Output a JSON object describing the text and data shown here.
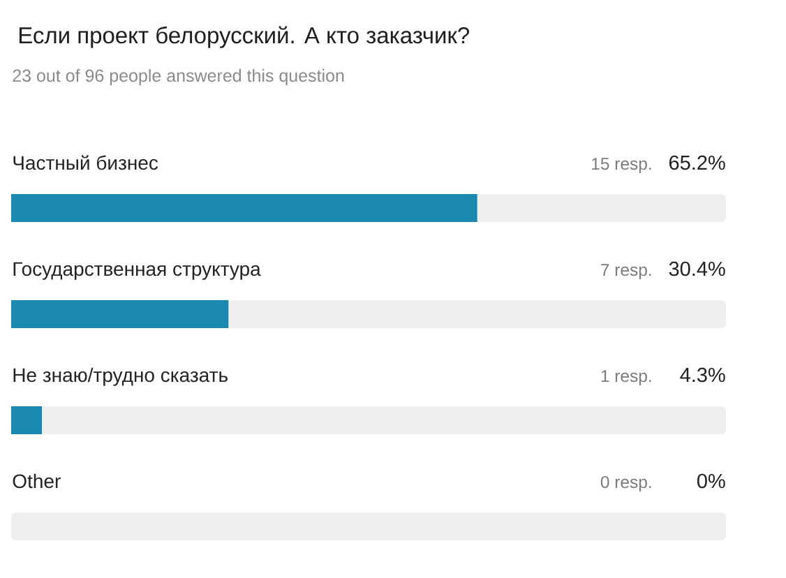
{
  "chart_data": {
    "type": "bar",
    "orientation": "horizontal",
    "title": "Если проект белорусский. А кто заказчик?",
    "subtitle": "23 out of 96 people answered this question",
    "categories": [
      "Частный бизнес",
      "Государственная структура",
      "Не знаю/трудно сказать",
      "Other"
    ],
    "series": [
      {
        "color": "#1a89b0",
        "values": [
          65.2,
          30.4,
          4.3,
          0
        ],
        "value_labels": [
          "65.2%",
          "30.4%",
          "4.3%",
          "0%"
        ]
      }
    ],
    "xlim": [
      0,
      100
    ],
    "bands": [
      {
        "axis": "x",
        "from": 0,
        "to": 100,
        "color": "#efefef"
      },
      {
        "axis": "x",
        "from": 0,
        "to": 100,
        "color": "#efefef"
      },
      {
        "axis": "x",
        "from": 0,
        "to": 100,
        "color": "#efefef"
      },
      {
        "axis": "x",
        "from": 0,
        "to": 100,
        "color": "#efefef"
      }
    ],
    "annotations": [
      "15 resp.",
      "7 resp.",
      "1 resp.",
      "0 resp."
    ]
  }
}
